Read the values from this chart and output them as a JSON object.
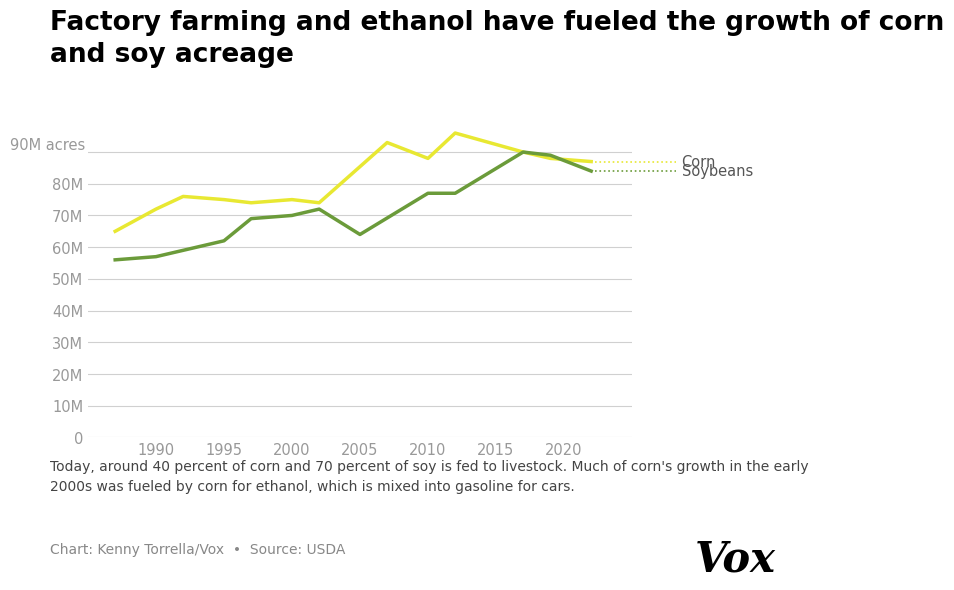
{
  "title_line1": "Factory farming and ethanol have fueled the growth of corn",
  "title_line2": "and soy acreage",
  "title_fontsize": 19,
  "title_fontweight": "bold",
  "corn_years": [
    1987,
    1990,
    1992,
    1995,
    1997,
    2000,
    2002,
    2007,
    2010,
    2012,
    2017,
    2019,
    2022
  ],
  "corn_values": [
    65,
    72,
    76,
    75,
    74,
    75,
    74,
    93,
    88,
    96,
    90,
    88,
    87
  ],
  "soy_years": [
    1987,
    1990,
    1992,
    1995,
    1997,
    2000,
    2002,
    2005,
    2010,
    2012,
    2017,
    2019,
    2022
  ],
  "soy_values": [
    56,
    57,
    59,
    62,
    69,
    70,
    72,
    64,
    77,
    77,
    90,
    89,
    84
  ],
  "corn_color": "#e8e832",
  "soy_color": "#6b9b3a",
  "legend_corn": "Corn",
  "legend_soy": "Soybeans",
  "y90m_label": "90M acres",
  "yticks": [
    0,
    10,
    20,
    30,
    40,
    50,
    60,
    70,
    80,
    90
  ],
  "ytick_labels": [
    "0",
    "10M",
    "20M",
    "30M",
    "40M",
    "50M",
    "60M",
    "70M",
    "80M",
    "90M"
  ],
  "xlim": [
    1985,
    2025
  ],
  "ylim": [
    0,
    100
  ],
  "xticks": [
    1990,
    1995,
    2000,
    2005,
    2010,
    2015,
    2020
  ],
  "caption": "Today, around 40 percent of corn and 70 percent of soy is fed to livestock. Much of corn's growth in the early\n2000s was fueled by corn for ethanol, which is mixed into gasoline for cars.",
  "source_text": "Chart: Kenny Torrella/Vox  •  Source: USDA",
  "background_color": "#ffffff",
  "grid_color": "#d0d0d0",
  "linewidth": 2.5,
  "vox_logo": "Vox",
  "caption_fontsize": 10,
  "source_fontsize": 10,
  "tick_color": "#999999"
}
